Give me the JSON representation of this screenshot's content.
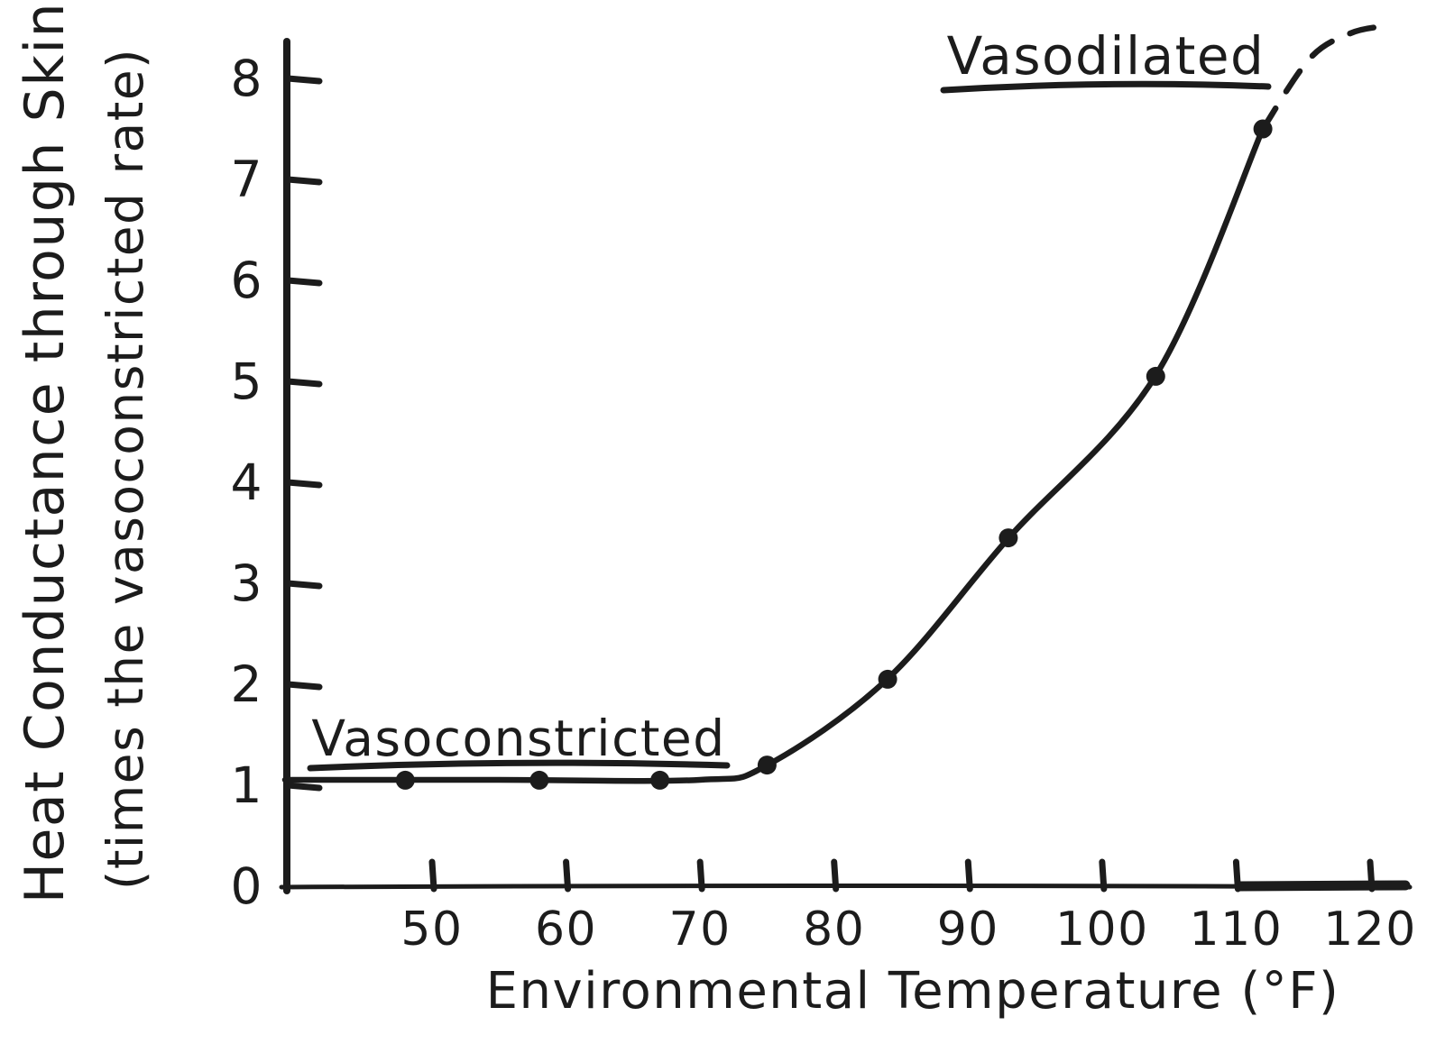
{
  "page": {
    "background": "#ffffff",
    "ink_color": "#1c1c1c"
  },
  "chart_data": {
    "type": "line",
    "title": "",
    "xlabel": "Environmental Temperature (°F)",
    "ylabel_line1": "Heat Conductance through Skin",
    "ylabel_line2": "(times the vasoconstricted rate)",
    "x_ticks": [
      50,
      60,
      70,
      80,
      90,
      100,
      110,
      120
    ],
    "y_ticks": [
      0,
      1,
      2,
      3,
      4,
      5,
      6,
      7,
      8
    ],
    "xlim": [
      39,
      123
    ],
    "ylim": [
      0,
      8.6
    ],
    "grid": false,
    "legend": "none",
    "annotations": [
      {
        "text": "Vasoconstricted",
        "underlined": true,
        "region": "flat segment, left of curve rise"
      },
      {
        "text": "Vasodilated",
        "underlined": true,
        "region": "upper right near dashed extrapolation"
      }
    ],
    "series": [
      {
        "name": "heat conductance curve (solid)",
        "style": "solid",
        "points": [
          [
            39,
            1.05
          ],
          [
            55,
            1.05
          ],
          [
            70,
            1.05
          ],
          [
            75,
            1.2
          ],
          [
            84,
            2.05
          ],
          [
            93,
            3.45
          ],
          [
            104,
            5.05
          ],
          [
            112,
            7.5
          ]
        ]
      },
      {
        "name": "extrapolated curve (dashed)",
        "style": "dashed",
        "points": [
          [
            112,
            7.5
          ],
          [
            115.5,
            8.2
          ],
          [
            118.5,
            8.45
          ],
          [
            121,
            8.52
          ]
        ]
      }
    ],
    "scatter_points": [
      [
        48,
        1.05
      ],
      [
        58,
        1.05
      ],
      [
        67,
        1.05
      ],
      [
        75,
        1.2
      ],
      [
        84,
        2.05
      ],
      [
        93,
        3.45
      ],
      [
        104,
        5.05
      ],
      [
        112,
        7.5
      ]
    ],
    "notes": "hand-drawn graph; x axis drawn thicker between 110 and 120"
  }
}
